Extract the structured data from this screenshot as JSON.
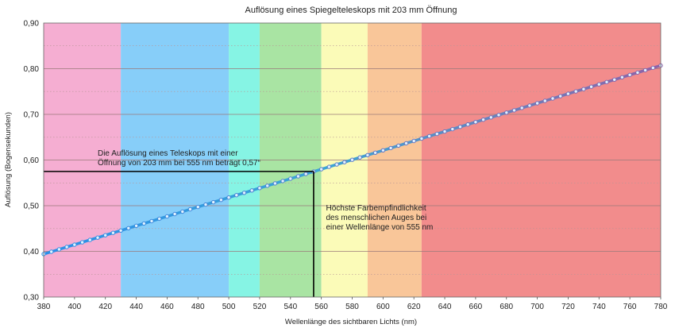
{
  "chart_data": {
    "type": "line",
    "title": "Auflösung eines Spiegelteleskops mit 203 mm Öffnung",
    "xlabel": "Wellenlänge des sichtbaren Lichts (nm)",
    "ylabel": "Auflösung (Bogensekunden)",
    "xlim": [
      380,
      780
    ],
    "ylim": [
      0.3,
      0.9
    ],
    "x_ticks": [
      380,
      400,
      420,
      440,
      460,
      480,
      500,
      520,
      540,
      560,
      580,
      600,
      620,
      640,
      660,
      680,
      700,
      720,
      740,
      760,
      780
    ],
    "y_ticks": [
      0.3,
      0.4,
      0.5,
      0.6,
      0.7,
      0.8,
      0.9
    ],
    "y_tick_labels": [
      "0,30",
      "0,40",
      "0,50",
      "0,60",
      "0,70",
      "0,80",
      "0,90"
    ],
    "grid": "horizontal, every 0.05",
    "series": [
      {
        "x_start": 380,
        "x_end": 780,
        "x_step": 5,
        "y_start": 0.394,
        "y_end": 0.807,
        "color_start": "#2b8fe8",
        "color_end": "#8d62a8"
      }
    ],
    "color_bands": [
      {
        "from": 380,
        "to": 430,
        "color": "#f5aed2"
      },
      {
        "from": 430,
        "to": 500,
        "color": "#87cef9"
      },
      {
        "from": 500,
        "to": 520,
        "color": "#86f4e4"
      },
      {
        "from": 520,
        "to": 560,
        "color": "#a9e4a3"
      },
      {
        "from": 560,
        "to": 590,
        "color": "#fbfbb8"
      },
      {
        "from": 590,
        "to": 625,
        "color": "#f9c699"
      },
      {
        "from": 625,
        "to": 780,
        "color": "#f28c8c"
      }
    ],
    "marker": {
      "x": 555,
      "y": 0.575
    },
    "annotations": [
      {
        "id": "resolution",
        "x": 415,
        "y": 0.61,
        "lines": [
          "Die Auflösung eines Teleskops mit einer",
          "Öffnung von 203 mm bei 555 nm beträgt 0,57“"
        ]
      },
      {
        "id": "sensitivity",
        "x": 563,
        "y": 0.49,
        "lines": [
          "Höchste Farbempfindlichkeit",
          "des menschlichen Auges bei",
          "einer Wellenlänge von 555 nm"
        ]
      }
    ]
  }
}
